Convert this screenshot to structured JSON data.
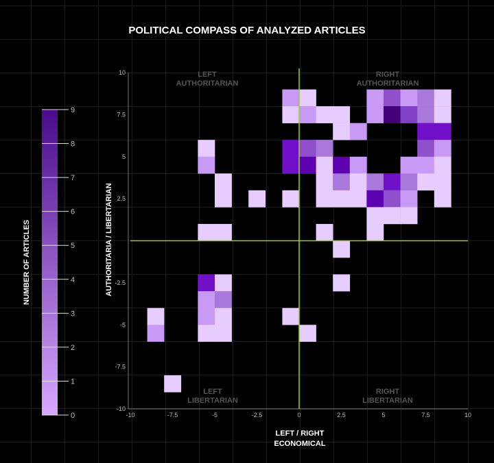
{
  "chart_data": {
    "type": "heatmap",
    "title": "POLITICAL COMPASS OF ANALYZED ARTICLES",
    "xlabel": [
      "LEFT / RIGHT",
      "ECONOMICAL"
    ],
    "ylabel": "AUTHORITARIA / LIBERTARIAN",
    "xlim": [
      -10,
      10
    ],
    "ylim": [
      -10,
      10
    ],
    "bin_size": 1,
    "x_ticks": [
      "-10",
      "-7.5",
      "-5",
      "-2.5",
      "0",
      "2.5",
      "5",
      "7.5",
      "10"
    ],
    "y_ticks": [
      "10",
      "7.5",
      "5",
      "2.5",
      "-2.5",
      "-5",
      "-7.5",
      "-10"
    ],
    "quadrant_labels": {
      "top_left": [
        "LEFT",
        "AUTHORITARIAN"
      ],
      "top_right": [
        "RIGHT",
        "AUTHORITARIAN"
      ],
      "bottom_left": [
        "LEFT",
        "LIBERTARIAN"
      ],
      "bottom_right": [
        "RIGHT",
        "LIBERTARIAN"
      ]
    },
    "colorbar": {
      "label": "NUMBER OF ARTICLES",
      "range": [
        0,
        9
      ],
      "ticks": [
        "0",
        "1",
        "2",
        "3",
        "4",
        "5",
        "6",
        "7",
        "8",
        "9"
      ],
      "color_min": "#d8a8ff",
      "color_max": "#4a0a8c"
    },
    "axis_line_color": "#9acd32",
    "cells": [
      {
        "x": -1,
        "y": 8,
        "count": 2
      },
      {
        "x": 0,
        "y": 8,
        "count": 1
      },
      {
        "x": 4,
        "y": 8,
        "count": 2
      },
      {
        "x": 5,
        "y": 8,
        "count": 4
      },
      {
        "x": 6,
        "y": 8,
        "count": 2
      },
      {
        "x": 7,
        "y": 8,
        "count": 3
      },
      {
        "x": 8,
        "y": 8,
        "count": 1
      },
      {
        "x": -1,
        "y": 7,
        "count": 1
      },
      {
        "x": 0,
        "y": 7,
        "count": 2
      },
      {
        "x": 1,
        "y": 7,
        "count": 1
      },
      {
        "x": 2,
        "y": 7,
        "count": 1
      },
      {
        "x": 4,
        "y": 7,
        "count": 2
      },
      {
        "x": 5,
        "y": 7,
        "count": 9
      },
      {
        "x": 6,
        "y": 7,
        "count": 5
      },
      {
        "x": 7,
        "y": 7,
        "count": 3
      },
      {
        "x": 8,
        "y": 7,
        "count": 1
      },
      {
        "x": 2,
        "y": 6,
        "count": 1
      },
      {
        "x": 3,
        "y": 6,
        "count": 2
      },
      {
        "x": 7,
        "y": 6,
        "count": 6
      },
      {
        "x": 8,
        "y": 6,
        "count": 6
      },
      {
        "x": -6,
        "y": 5,
        "count": 1
      },
      {
        "x": -1,
        "y": 5,
        "count": 6
      },
      {
        "x": 0,
        "y": 5,
        "count": 4
      },
      {
        "x": 1,
        "y": 5,
        "count": 3
      },
      {
        "x": 7,
        "y": 5,
        "count": 4
      },
      {
        "x": 8,
        "y": 5,
        "count": 2
      },
      {
        "x": -6,
        "y": 4,
        "count": 2
      },
      {
        "x": -1,
        "y": 4,
        "count": 6
      },
      {
        "x": 0,
        "y": 4,
        "count": 7
      },
      {
        "x": 1,
        "y": 4,
        "count": 1
      },
      {
        "x": 2,
        "y": 4,
        "count": 7
      },
      {
        "x": 3,
        "y": 4,
        "count": 2
      },
      {
        "x": 6,
        "y": 4,
        "count": 2
      },
      {
        "x": 7,
        "y": 4,
        "count": 2
      },
      {
        "x": 8,
        "y": 4,
        "count": 1
      },
      {
        "x": -5,
        "y": 3,
        "count": 1
      },
      {
        "x": 1,
        "y": 3,
        "count": 1
      },
      {
        "x": 2,
        "y": 3,
        "count": 3
      },
      {
        "x": 3,
        "y": 3,
        "count": 1
      },
      {
        "x": 4,
        "y": 3,
        "count": 3
      },
      {
        "x": 5,
        "y": 3,
        "count": 6
      },
      {
        "x": 6,
        "y": 3,
        "count": 3
      },
      {
        "x": 7,
        "y": 3,
        "count": 1
      },
      {
        "x": 8,
        "y": 3,
        "count": 1
      },
      {
        "x": -5,
        "y": 2,
        "count": 1
      },
      {
        "x": -3,
        "y": 2,
        "count": 1
      },
      {
        "x": -1,
        "y": 2,
        "count": 1
      },
      {
        "x": 1,
        "y": 2,
        "count": 1
      },
      {
        "x": 2,
        "y": 2,
        "count": 1
      },
      {
        "x": 3,
        "y": 2,
        "count": 1
      },
      {
        "x": 4,
        "y": 2,
        "count": 7
      },
      {
        "x": 5,
        "y": 2,
        "count": 4
      },
      {
        "x": 6,
        "y": 2,
        "count": 2
      },
      {
        "x": 8,
        "y": 2,
        "count": 1
      },
      {
        "x": 4,
        "y": 1,
        "count": 1
      },
      {
        "x": 5,
        "y": 1,
        "count": 1
      },
      {
        "x": 6,
        "y": 1,
        "count": 1
      },
      {
        "x": -6,
        "y": 0,
        "count": 1
      },
      {
        "x": -5,
        "y": 0,
        "count": 1
      },
      {
        "x": 1,
        "y": 0,
        "count": 1
      },
      {
        "x": 4,
        "y": 0,
        "count": 1
      },
      {
        "x": 2,
        "y": -1,
        "count": 1
      },
      {
        "x": -6,
        "y": -3,
        "count": 6
      },
      {
        "x": -5,
        "y": -3,
        "count": 1
      },
      {
        "x": 2,
        "y": -3,
        "count": 1
      },
      {
        "x": -6,
        "y": -4,
        "count": 2
      },
      {
        "x": -5,
        "y": -4,
        "count": 3
      },
      {
        "x": -9,
        "y": -5,
        "count": 1
      },
      {
        "x": -6,
        "y": -5,
        "count": 2
      },
      {
        "x": -5,
        "y": -5,
        "count": 1
      },
      {
        "x": -1,
        "y": -5,
        "count": 1
      },
      {
        "x": -9,
        "y": -6,
        "count": 2
      },
      {
        "x": -6,
        "y": -6,
        "count": 1
      },
      {
        "x": -5,
        "y": -6,
        "count": 1
      },
      {
        "x": 0,
        "y": -6,
        "count": 1
      },
      {
        "x": -8,
        "y": -9,
        "count": 1
      }
    ]
  }
}
